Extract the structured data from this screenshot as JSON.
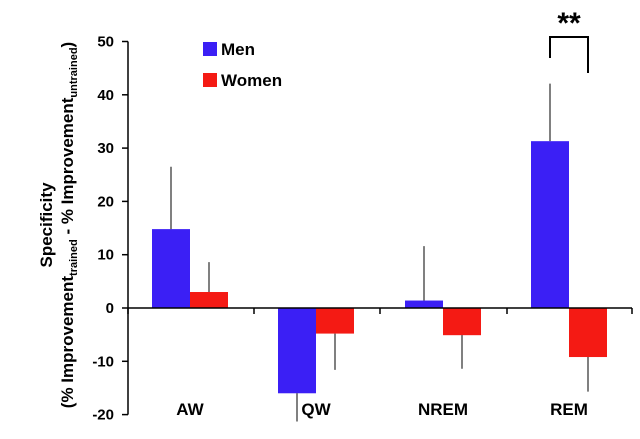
{
  "chart_data": {
    "type": "bar",
    "categories": [
      "AW",
      "QW",
      "NREM",
      "REM"
    ],
    "series": [
      {
        "name": "Men",
        "color": "#3b1ff5",
        "values": [
          14.8,
          -16.0,
          1.4,
          31.3
        ],
        "errors": [
          11.7,
          5.3,
          10.2,
          10.8
        ]
      },
      {
        "name": "Women",
        "color": "#f41a14",
        "values": [
          3.0,
          -4.8,
          -5.1,
          -9.2
        ],
        "errors": [
          5.6,
          6.8,
          6.3,
          6.5
        ]
      }
    ],
    "ylabel_main": "Specificity",
    "ylabel_parts": [
      {
        "text": "(% Improvement",
        "sub": false
      },
      {
        "text": "trained",
        "sub": true
      },
      {
        "text": " - % Improvement",
        "sub": false
      },
      {
        "text": "untrained",
        "sub": true
      },
      {
        "text": ")",
        "sub": false
      }
    ],
    "xlabel": "",
    "ylim": [
      -20,
      50
    ],
    "yticks": [
      -20,
      -10,
      0,
      10,
      20,
      30,
      40,
      50
    ],
    "legend": "top-left",
    "annotation": {
      "text": "**",
      "category": "REM"
    }
  }
}
